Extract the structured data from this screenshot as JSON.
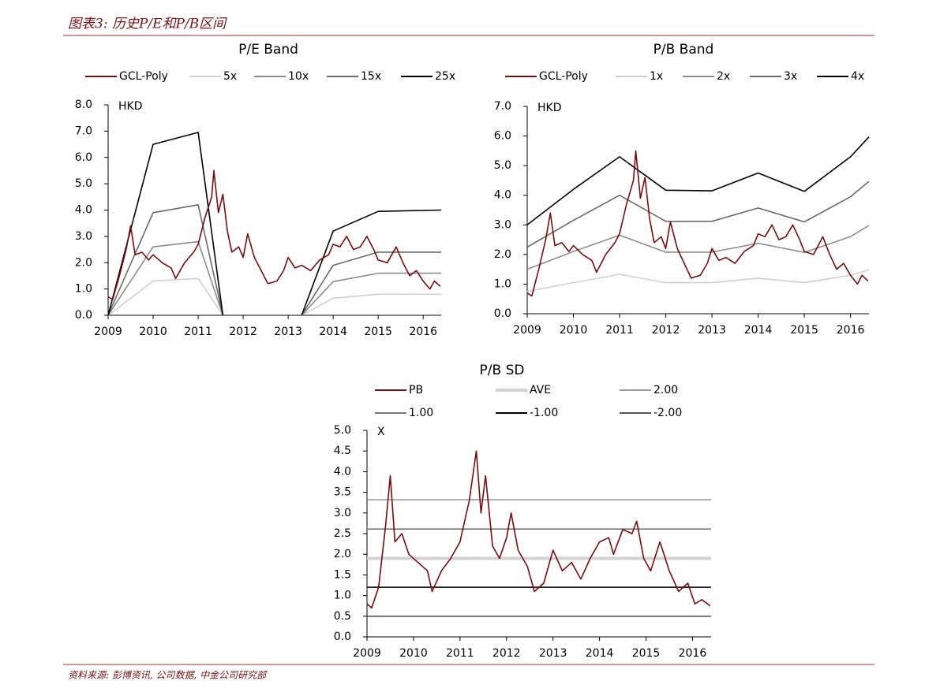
{
  "header": {
    "title": "图表3: 历史P/E和P/B区间"
  },
  "chart_data": [
    {
      "type": "line",
      "title": "P/E Band",
      "y_unit": "HKD",
      "xlim": [
        2009,
        2016.4
      ],
      "xticks": [
        2009,
        2010,
        2011,
        2012,
        2013,
        2014,
        2015,
        2016
      ],
      "ylim": [
        0,
        8
      ],
      "yticks": [
        {
          "value": 0,
          "label": "0.0"
        },
        {
          "value": 1,
          "label": "1.0"
        },
        {
          "value": 2,
          "label": "2.0"
        },
        {
          "value": 3,
          "label": "3.0"
        },
        {
          "value": 4,
          "label": "4.0"
        },
        {
          "value": 5,
          "label": "5.0"
        },
        {
          "value": 6,
          "label": "6.0"
        },
        {
          "value": 7,
          "label": "7.0"
        },
        {
          "value": 8,
          "label": "8.0"
        }
      ],
      "series": [
        {
          "name": "GCL-Poly",
          "color": "#7a0c0c",
          "x": [
            2009,
            2009.1,
            2009.25,
            2009.4,
            2009.5,
            2009.6,
            2009.75,
            2009.9,
            2010,
            2010.2,
            2010.4,
            2010.5,
            2010.7,
            2010.9,
            2011,
            2011.15,
            2011.3,
            2011.35,
            2011.45,
            2011.55,
            2011.65,
            2011.75,
            2011.9,
            2012,
            2012.1,
            2012.25,
            2012.4,
            2012.55,
            2012.75,
            2012.9,
            2013,
            2013.15,
            2013.3,
            2013.5,
            2013.7,
            2013.9,
            2014,
            2014.15,
            2014.3,
            2014.45,
            2014.6,
            2014.75,
            2014.9,
            2015,
            2015.2,
            2015.4,
            2015.55,
            2015.7,
            2015.85,
            2016,
            2016.15,
            2016.25,
            2016.38
          ],
          "values": [
            0.7,
            0.6,
            1.5,
            2.5,
            3.4,
            2.3,
            2.4,
            2.1,
            2.3,
            2.0,
            1.8,
            1.4,
            2.0,
            2.4,
            2.7,
            3.7,
            4.5,
            5.5,
            3.9,
            4.6,
            3.2,
            2.4,
            2.6,
            2.2,
            3.1,
            2.2,
            1.7,
            1.2,
            1.3,
            1.7,
            2.2,
            1.8,
            1.9,
            1.7,
            2.1,
            2.3,
            2.7,
            2.6,
            3.0,
            2.5,
            2.6,
            3.0,
            2.5,
            2.1,
            2.0,
            2.6,
            2.0,
            1.5,
            1.7,
            1.3,
            1.0,
            1.3,
            1.1
          ]
        },
        {
          "name": "5x",
          "color": "#d0d0d0",
          "x": [
            2009,
            2010,
            2011,
            2011.55,
            2012.5,
            2013.3,
            2014,
            2015,
            2016.4
          ],
          "values": [
            0,
            1.3,
            1.4,
            0,
            null,
            0,
            0.65,
            0.8,
            0.8
          ]
        },
        {
          "name": "10x",
          "color": "#8c8c8c",
          "x": [
            2009,
            2010,
            2011,
            2011.55,
            2012.5,
            2013.3,
            2014,
            2015,
            2016.4
          ],
          "values": [
            0,
            2.6,
            2.8,
            0,
            null,
            0,
            1.28,
            1.6,
            1.6
          ]
        },
        {
          "name": "15x",
          "color": "#6a6a6a",
          "x": [
            2009,
            2010,
            2011,
            2011.55,
            2012.5,
            2013.3,
            2014,
            2015,
            2016.4
          ],
          "values": [
            0,
            3.9,
            4.2,
            0,
            null,
            0,
            1.9,
            2.4,
            2.4
          ]
        },
        {
          "name": "25x",
          "color": "#000000",
          "x": [
            2009,
            2010,
            2011,
            2011.55,
            2012.5,
            2013.3,
            2014,
            2015,
            2016.4
          ],
          "values": [
            0,
            6.5,
            6.95,
            0,
            null,
            0,
            3.2,
            3.95,
            4.0
          ]
        }
      ]
    },
    {
      "type": "line",
      "title": "P/B Band",
      "y_unit": "HKD",
      "xlim": [
        2009,
        2016.4
      ],
      "xticks": [
        2009,
        2010,
        2011,
        2012,
        2013,
        2014,
        2015,
        2016
      ],
      "ylim": [
        0,
        7
      ],
      "yticks": [
        {
          "value": 0,
          "label": "0.0"
        },
        {
          "value": 1,
          "label": "1.0"
        },
        {
          "value": 2,
          "label": "2.0"
        },
        {
          "value": 3,
          "label": "3.0"
        },
        {
          "value": 4,
          "label": "4.0"
        },
        {
          "value": 5,
          "label": "5.0"
        },
        {
          "value": 6,
          "label": "6.0"
        },
        {
          "value": 7,
          "label": "7.0"
        }
      ],
      "series": [
        {
          "name": "GCL-Poly",
          "color": "#7a0c0c",
          "x": [
            2009,
            2009.1,
            2009.25,
            2009.4,
            2009.5,
            2009.6,
            2009.75,
            2009.9,
            2010,
            2010.2,
            2010.4,
            2010.5,
            2010.7,
            2010.9,
            2011,
            2011.15,
            2011.3,
            2011.35,
            2011.45,
            2011.55,
            2011.65,
            2011.75,
            2011.9,
            2012,
            2012.1,
            2012.25,
            2012.4,
            2012.55,
            2012.75,
            2012.9,
            2013,
            2013.15,
            2013.3,
            2013.5,
            2013.7,
            2013.9,
            2014,
            2014.15,
            2014.3,
            2014.45,
            2014.6,
            2014.75,
            2014.9,
            2015,
            2015.2,
            2015.4,
            2015.55,
            2015.7,
            2015.85,
            2016,
            2016.15,
            2016.25,
            2016.38
          ],
          "values": [
            0.7,
            0.6,
            1.5,
            2.5,
            3.4,
            2.3,
            2.4,
            2.1,
            2.3,
            2.0,
            1.8,
            1.4,
            2.0,
            2.4,
            2.7,
            3.7,
            4.5,
            5.5,
            3.9,
            4.6,
            3.2,
            2.4,
            2.6,
            2.2,
            3.1,
            2.2,
            1.7,
            1.2,
            1.3,
            1.7,
            2.2,
            1.8,
            1.9,
            1.7,
            2.1,
            2.3,
            2.7,
            2.6,
            3.0,
            2.5,
            2.6,
            3.0,
            2.5,
            2.1,
            2.0,
            2.6,
            2.0,
            1.5,
            1.7,
            1.3,
            1.0,
            1.3,
            1.1
          ]
        },
        {
          "name": "1x",
          "color": "#d0d0d0",
          "x": [
            2009,
            2010,
            2011,
            2012,
            2013,
            2014,
            2015,
            2016,
            2016.4
          ],
          "values": [
            0.75,
            1.05,
            1.33,
            1.05,
            1.05,
            1.2,
            1.05,
            1.3,
            1.48
          ]
        },
        {
          "name": "2x",
          "color": "#8c8c8c",
          "x": [
            2009,
            2010,
            2011,
            2012,
            2013,
            2014,
            2015,
            2016,
            2016.4
          ],
          "values": [
            1.5,
            2.1,
            2.65,
            2.08,
            2.08,
            2.38,
            2.07,
            2.6,
            2.98
          ]
        },
        {
          "name": "3x",
          "color": "#6a6a6a",
          "x": [
            2009,
            2010,
            2011,
            2012,
            2013,
            2014,
            2015,
            2016,
            2016.4
          ],
          "values": [
            2.25,
            3.15,
            4.0,
            3.12,
            3.12,
            3.57,
            3.1,
            3.95,
            4.47
          ]
        },
        {
          "name": "4x",
          "color": "#000000",
          "x": [
            2009,
            2010,
            2011,
            2012,
            2013,
            2014,
            2015,
            2016,
            2016.4
          ],
          "values": [
            3.0,
            4.2,
            5.3,
            4.17,
            4.15,
            4.75,
            4.13,
            5.3,
            5.97
          ]
        }
      ]
    },
    {
      "type": "line",
      "title": "P/B SD",
      "y_unit": "X",
      "xlim": [
        2009,
        2016.4
      ],
      "xticks": [
        2009,
        2010,
        2011,
        2012,
        2013,
        2014,
        2015,
        2016
      ],
      "ylim": [
        0,
        5
      ],
      "yticks": [
        {
          "value": 0,
          "label": "0.0"
        },
        0.5,
        {
          "value": 1,
          "label": "1.0"
        },
        1.5,
        {
          "value": 2,
          "label": "2.0"
        },
        2.5,
        {
          "value": 3,
          "label": "3.0"
        },
        3.5,
        {
          "value": 4,
          "label": "4.0"
        },
        4.5,
        {
          "value": 5,
          "label": "5.0"
        }
      ],
      "series": [
        {
          "name": "PB",
          "color": "#7a0c0c",
          "x": [
            2009,
            2009.1,
            2009.25,
            2009.4,
            2009.5,
            2009.6,
            2009.75,
            2009.9,
            2010.1,
            2010.3,
            2010.4,
            2010.6,
            2010.8,
            2011,
            2011.2,
            2011.35,
            2011.45,
            2011.55,
            2011.7,
            2011.85,
            2012,
            2012.1,
            2012.25,
            2012.45,
            2012.6,
            2012.8,
            2013,
            2013.2,
            2013.4,
            2013.6,
            2013.8,
            2014,
            2014.2,
            2014.3,
            2014.5,
            2014.7,
            2014.8,
            2014.95,
            2015.1,
            2015.3,
            2015.5,
            2015.7,
            2015.9,
            2016.05,
            2016.2,
            2016.38
          ],
          "values": [
            0.8,
            0.7,
            1.2,
            2.7,
            3.9,
            2.3,
            2.5,
            2.0,
            1.8,
            1.6,
            1.1,
            1.6,
            1.9,
            2.3,
            3.3,
            4.5,
            3.0,
            3.9,
            2.2,
            1.9,
            2.4,
            3.0,
            2.1,
            1.7,
            1.1,
            1.3,
            2.1,
            1.6,
            1.8,
            1.4,
            1.9,
            2.3,
            2.4,
            2.0,
            2.6,
            2.5,
            2.8,
            1.9,
            1.6,
            2.3,
            1.6,
            1.1,
            1.3,
            0.8,
            0.9,
            0.75
          ]
        },
        {
          "name": "AVE",
          "color": "#d3d3d3",
          "x": [
            2009,
            2016.4
          ],
          "values": [
            1.9,
            1.9
          ]
        },
        {
          "name": "2.00",
          "color": "#999999",
          "x": [
            2009,
            2016.4
          ],
          "values": [
            3.32,
            3.32
          ]
        },
        {
          "name": "1.00",
          "color": "#777777",
          "x": [
            2009,
            2016.4
          ],
          "values": [
            2.61,
            2.61
          ]
        },
        {
          "name": "-1.00",
          "color": "#000000",
          "x": [
            2009,
            2016.4
          ],
          "values": [
            1.2,
            1.2
          ]
        },
        {
          "name": "-2.00",
          "color": "#555555",
          "x": [
            2009,
            2016.4
          ],
          "values": [
            0.5,
            0.5
          ]
        }
      ]
    }
  ],
  "footer": {
    "source": "资料来源: 彭博资讯, 公司数据, 中金公司研究部"
  }
}
